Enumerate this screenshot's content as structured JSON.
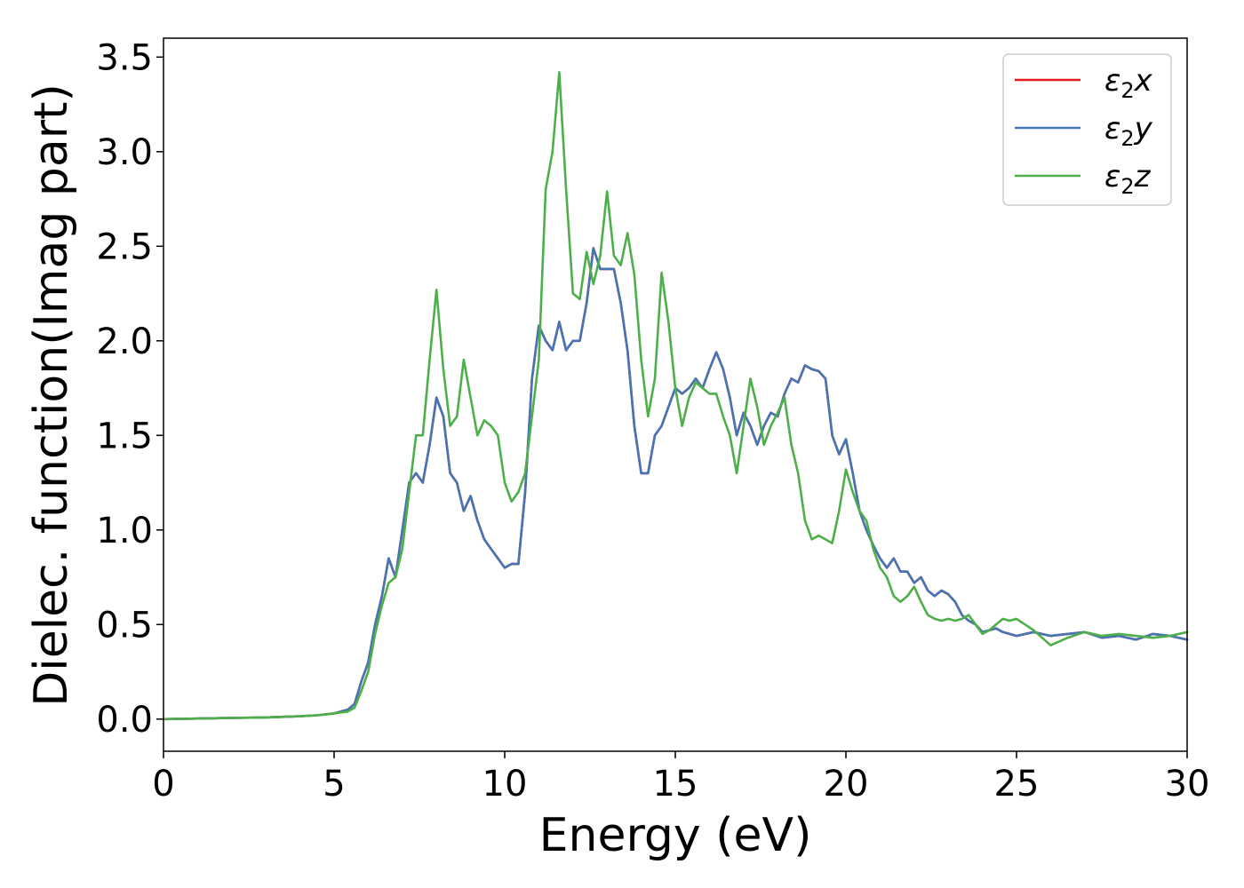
{
  "chart_data": {
    "type": "line",
    "title": "",
    "xlabel": "Energy (eV)",
    "ylabel": "Dielec. function(Imag part)",
    "xlim": [
      0,
      30
    ],
    "ylim": [
      -0.17,
      3.6
    ],
    "xticks": [
      0,
      5,
      10,
      15,
      20,
      25,
      30
    ],
    "xtick_labels": [
      "0",
      "5",
      "10",
      "15",
      "20",
      "25",
      "30"
    ],
    "yticks": [
      0.0,
      0.5,
      1.0,
      1.5,
      2.0,
      2.5,
      3.0,
      3.5
    ],
    "ytick_labels": [
      "0.0",
      "0.5",
      "1.0",
      "1.5",
      "2.0",
      "2.5",
      "3.0",
      "3.5"
    ],
    "grid": false,
    "legend_position": "top-right",
    "series": [
      {
        "name": "ε₂x",
        "legend_symbol": "ε",
        "legend_sub": "2",
        "legend_var": "x",
        "color": "#e41a1c",
        "x": [
          0,
          1,
          2,
          3,
          4,
          4.5,
          5,
          5.4,
          5.6,
          5.8,
          6.0,
          6.2,
          6.4,
          6.6,
          6.8,
          7.0,
          7.2,
          7.4,
          7.6,
          7.8,
          8.0,
          8.2,
          8.4,
          8.6,
          8.8,
          9.0,
          9.2,
          9.4,
          9.6,
          9.8,
          10.0,
          10.2,
          10.4,
          10.6,
          10.8,
          11.0,
          11.2,
          11.4,
          11.6,
          11.8,
          12.0,
          12.2,
          12.4,
          12.6,
          12.8,
          13.0,
          13.2,
          13.4,
          13.6,
          13.8,
          14.0,
          14.2,
          14.4,
          14.6,
          14.8,
          15.0,
          15.2,
          15.4,
          15.6,
          15.8,
          16.0,
          16.2,
          16.4,
          16.6,
          16.8,
          17.0,
          17.2,
          17.4,
          17.6,
          17.8,
          18.0,
          18.2,
          18.4,
          18.6,
          18.8,
          19.0,
          19.2,
          19.4,
          19.6,
          19.8,
          20.0,
          20.2,
          20.4,
          20.6,
          20.8,
          21.0,
          21.2,
          21.4,
          21.6,
          21.8,
          22.0,
          22.2,
          22.4,
          22.6,
          22.8,
          23.0,
          23.2,
          23.4,
          23.6,
          23.8,
          24.0,
          24.2,
          24.4,
          24.6,
          24.8,
          25.0,
          25.5,
          26.0,
          26.5,
          27.0,
          27.5,
          28.0,
          28.5,
          29.0,
          29.5,
          30.0
        ],
        "y": [
          0.0,
          0.003,
          0.006,
          0.009,
          0.015,
          0.02,
          0.03,
          0.05,
          0.08,
          0.2,
          0.3,
          0.5,
          0.65,
          0.85,
          0.75,
          1.0,
          1.25,
          1.3,
          1.25,
          1.45,
          1.7,
          1.6,
          1.3,
          1.25,
          1.1,
          1.18,
          1.05,
          0.95,
          0.9,
          0.85,
          0.8,
          0.82,
          0.82,
          1.2,
          1.8,
          2.08,
          2.0,
          1.95,
          2.1,
          1.95,
          2.0,
          2.0,
          2.2,
          2.49,
          2.38,
          2.38,
          2.38,
          2.2,
          1.95,
          1.55,
          1.3,
          1.3,
          1.5,
          1.55,
          1.65,
          1.75,
          1.72,
          1.75,
          1.8,
          1.75,
          1.85,
          1.94,
          1.85,
          1.7,
          1.5,
          1.62,
          1.55,
          1.45,
          1.55,
          1.62,
          1.6,
          1.72,
          1.8,
          1.78,
          1.87,
          1.85,
          1.84,
          1.8,
          1.5,
          1.4,
          1.48,
          1.3,
          1.1,
          1.0,
          0.92,
          0.85,
          0.8,
          0.85,
          0.78,
          0.78,
          0.72,
          0.75,
          0.68,
          0.65,
          0.68,
          0.66,
          0.62,
          0.55,
          0.52,
          0.5,
          0.46,
          0.47,
          0.48,
          0.46,
          0.45,
          0.44,
          0.46,
          0.44,
          0.45,
          0.46,
          0.43,
          0.44,
          0.42,
          0.45,
          0.44,
          0.42
        ]
      },
      {
        "name": "ε₂y",
        "legend_symbol": "ε",
        "legend_sub": "2",
        "legend_var": "y",
        "color": "#4575b4",
        "x": [
          0,
          1,
          2,
          3,
          4,
          4.5,
          5,
          5.4,
          5.6,
          5.8,
          6.0,
          6.2,
          6.4,
          6.6,
          6.8,
          7.0,
          7.2,
          7.4,
          7.6,
          7.8,
          8.0,
          8.2,
          8.4,
          8.6,
          8.8,
          9.0,
          9.2,
          9.4,
          9.6,
          9.8,
          10.0,
          10.2,
          10.4,
          10.6,
          10.8,
          11.0,
          11.2,
          11.4,
          11.6,
          11.8,
          12.0,
          12.2,
          12.4,
          12.6,
          12.8,
          13.0,
          13.2,
          13.4,
          13.6,
          13.8,
          14.0,
          14.2,
          14.4,
          14.6,
          14.8,
          15.0,
          15.2,
          15.4,
          15.6,
          15.8,
          16.0,
          16.2,
          16.4,
          16.6,
          16.8,
          17.0,
          17.2,
          17.4,
          17.6,
          17.8,
          18.0,
          18.2,
          18.4,
          18.6,
          18.8,
          19.0,
          19.2,
          19.4,
          19.6,
          19.8,
          20.0,
          20.2,
          20.4,
          20.6,
          20.8,
          21.0,
          21.2,
          21.4,
          21.6,
          21.8,
          22.0,
          22.2,
          22.4,
          22.6,
          22.8,
          23.0,
          23.2,
          23.4,
          23.6,
          23.8,
          24.0,
          24.2,
          24.4,
          24.6,
          24.8,
          25.0,
          25.5,
          26.0,
          26.5,
          27.0,
          27.5,
          28.0,
          28.5,
          29.0,
          29.5,
          30.0
        ],
        "y": [
          0.0,
          0.003,
          0.006,
          0.009,
          0.015,
          0.02,
          0.03,
          0.05,
          0.08,
          0.2,
          0.3,
          0.5,
          0.65,
          0.85,
          0.75,
          1.0,
          1.25,
          1.3,
          1.25,
          1.45,
          1.7,
          1.6,
          1.3,
          1.25,
          1.1,
          1.18,
          1.05,
          0.95,
          0.9,
          0.85,
          0.8,
          0.82,
          0.82,
          1.2,
          1.8,
          2.08,
          2.0,
          1.95,
          2.1,
          1.95,
          2.0,
          2.0,
          2.2,
          2.49,
          2.38,
          2.38,
          2.38,
          2.2,
          1.95,
          1.55,
          1.3,
          1.3,
          1.5,
          1.55,
          1.65,
          1.75,
          1.72,
          1.75,
          1.8,
          1.75,
          1.85,
          1.94,
          1.85,
          1.7,
          1.5,
          1.62,
          1.55,
          1.45,
          1.55,
          1.62,
          1.6,
          1.72,
          1.8,
          1.78,
          1.87,
          1.85,
          1.84,
          1.8,
          1.5,
          1.4,
          1.48,
          1.3,
          1.1,
          1.0,
          0.92,
          0.85,
          0.8,
          0.85,
          0.78,
          0.78,
          0.72,
          0.75,
          0.68,
          0.65,
          0.68,
          0.66,
          0.62,
          0.55,
          0.52,
          0.5,
          0.46,
          0.47,
          0.48,
          0.46,
          0.45,
          0.44,
          0.46,
          0.44,
          0.45,
          0.46,
          0.43,
          0.44,
          0.42,
          0.45,
          0.44,
          0.42
        ]
      },
      {
        "name": "ε₂z",
        "legend_symbol": "ε",
        "legend_sub": "2",
        "legend_var": "z",
        "color": "#4daf4a",
        "x": [
          0,
          1,
          2,
          3,
          4,
          4.5,
          5,
          5.4,
          5.6,
          5.8,
          6.0,
          6.2,
          6.4,
          6.6,
          6.8,
          7.0,
          7.2,
          7.4,
          7.6,
          7.8,
          8.0,
          8.2,
          8.4,
          8.6,
          8.8,
          9.0,
          9.2,
          9.4,
          9.6,
          9.8,
          10.0,
          10.2,
          10.4,
          10.6,
          10.8,
          11.0,
          11.2,
          11.4,
          11.6,
          11.8,
          12.0,
          12.2,
          12.4,
          12.6,
          12.8,
          13.0,
          13.2,
          13.4,
          13.6,
          13.8,
          14.0,
          14.2,
          14.4,
          14.6,
          14.8,
          15.0,
          15.2,
          15.4,
          15.6,
          15.8,
          16.0,
          16.2,
          16.4,
          16.6,
          16.8,
          17.0,
          17.2,
          17.4,
          17.6,
          17.8,
          18.0,
          18.2,
          18.4,
          18.6,
          18.8,
          19.0,
          19.2,
          19.4,
          19.6,
          19.8,
          20.0,
          20.2,
          20.4,
          20.6,
          20.8,
          21.0,
          21.2,
          21.4,
          21.6,
          21.8,
          22.0,
          22.2,
          22.4,
          22.6,
          22.8,
          23.0,
          23.2,
          23.4,
          23.6,
          23.8,
          24.0,
          24.2,
          24.4,
          24.6,
          24.8,
          25.0,
          25.5,
          26.0,
          26.5,
          27.0,
          27.5,
          28.0,
          28.5,
          29.0,
          29.5,
          30.0
        ],
        "y": [
          0.0,
          0.003,
          0.006,
          0.009,
          0.015,
          0.02,
          0.03,
          0.04,
          0.06,
          0.15,
          0.25,
          0.45,
          0.6,
          0.72,
          0.75,
          0.9,
          1.2,
          1.5,
          1.5,
          1.9,
          2.27,
          1.85,
          1.55,
          1.6,
          1.9,
          1.7,
          1.5,
          1.58,
          1.55,
          1.5,
          1.25,
          1.15,
          1.2,
          1.3,
          1.6,
          1.9,
          2.8,
          3.0,
          3.42,
          2.8,
          2.25,
          2.22,
          2.47,
          2.3,
          2.45,
          2.79,
          2.45,
          2.4,
          2.57,
          2.35,
          1.9,
          1.6,
          1.8,
          2.36,
          2.1,
          1.75,
          1.55,
          1.7,
          1.78,
          1.75,
          1.72,
          1.72,
          1.6,
          1.5,
          1.3,
          1.55,
          1.8,
          1.65,
          1.45,
          1.55,
          1.62,
          1.7,
          1.45,
          1.3,
          1.05,
          0.95,
          0.97,
          0.95,
          0.93,
          1.1,
          1.32,
          1.2,
          1.1,
          1.05,
          0.9,
          0.8,
          0.75,
          0.65,
          0.62,
          0.65,
          0.7,
          0.62,
          0.55,
          0.53,
          0.52,
          0.53,
          0.52,
          0.53,
          0.55,
          0.5,
          0.45,
          0.47,
          0.5,
          0.53,
          0.52,
          0.53,
          0.47,
          0.39,
          0.43,
          0.46,
          0.44,
          0.45,
          0.44,
          0.43,
          0.44,
          0.46
        ]
      }
    ]
  }
}
